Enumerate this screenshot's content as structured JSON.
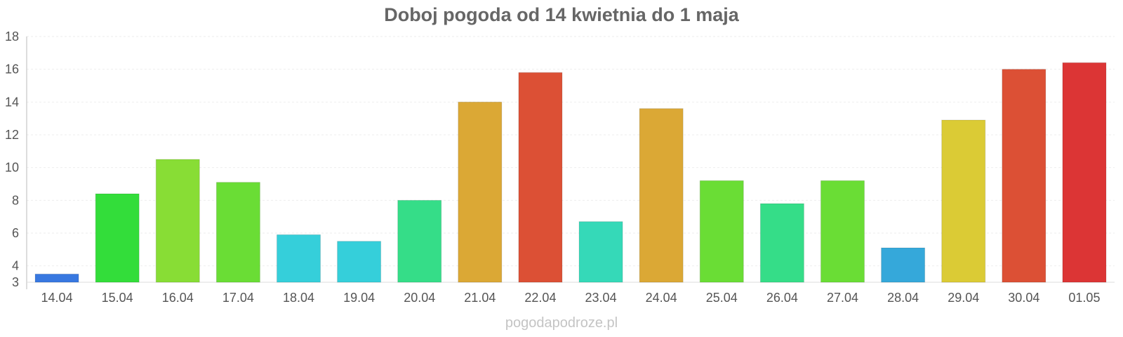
{
  "chart_data": {
    "type": "bar",
    "title": "Doboj pogoda od 14 kwietnia do 1 maja",
    "xlabel": "",
    "ylabel": "",
    "categories": [
      "14.04",
      "15.04",
      "16.04",
      "17.04",
      "18.04",
      "19.04",
      "20.04",
      "21.04",
      "22.04",
      "23.04",
      "24.04",
      "25.04",
      "26.04",
      "27.04",
      "28.04",
      "29.04",
      "30.04",
      "01.05"
    ],
    "values": [
      3.5,
      8.4,
      10.5,
      9.1,
      5.9,
      5.5,
      8.0,
      14.0,
      15.8,
      6.7,
      13.6,
      9.2,
      7.8,
      9.2,
      5.1,
      12.9,
      16.0,
      16.4
    ],
    "ylim": [
      3,
      18
    ],
    "yticks": [
      3,
      4,
      6,
      8,
      10,
      12,
      14,
      16,
      18
    ],
    "grid": true,
    "legend": "none",
    "colors": [
      "#3878e0",
      "#33dd3a",
      "#88dd35",
      "#6add35",
      "#35cfda",
      "#35cfda",
      "#35dd88",
      "#dba835",
      "#dc5035",
      "#35d9b8",
      "#dba835",
      "#6add35",
      "#35dd88",
      "#6add35",
      "#35a8da",
      "#dbcb35",
      "#dc5035",
      "#dc3535"
    ]
  },
  "footer": {
    "watermark": "pogodapodroze.pl"
  }
}
